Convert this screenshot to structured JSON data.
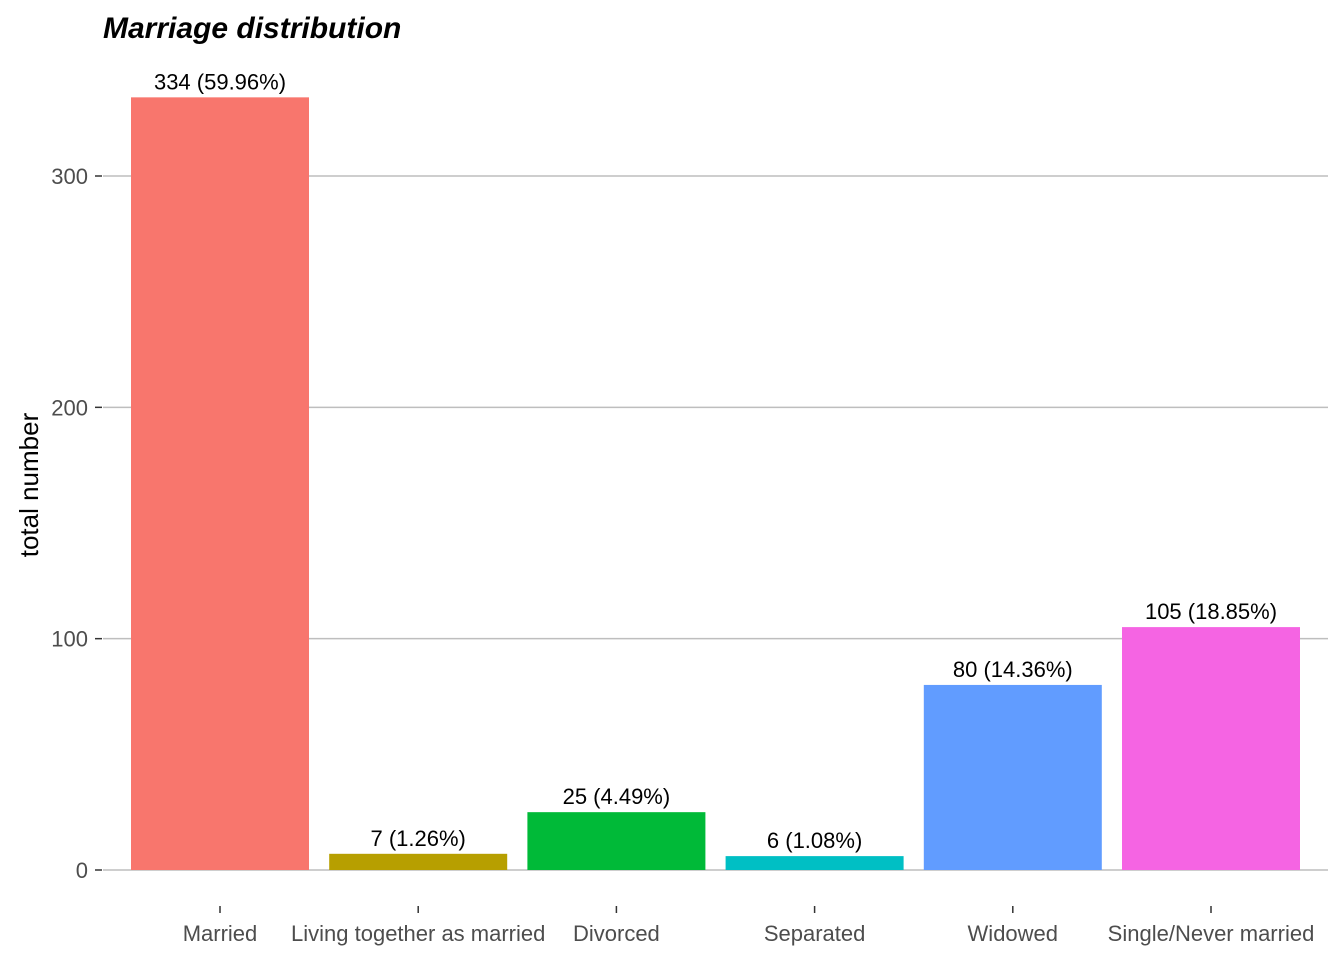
{
  "chart_data": {
    "type": "bar",
    "title": "Marriage distribution",
    "xlabel": "",
    "ylabel": "total number",
    "categories": [
      "Married",
      "Living together as married",
      "Divorced",
      "Separated",
      "Widowed",
      "Single/Never married"
    ],
    "values": [
      334,
      7,
      25,
      6,
      80,
      105
    ],
    "data_labels": [
      "334 (59.96%)",
      "7 (1.26%)",
      "25 (4.49%)",
      "6 (1.08%)",
      "80 (14.36%)",
      "105 (18.85%)"
    ],
    "colors": [
      "#F8766D",
      "#B79F00",
      "#00BA38",
      "#00BFC4",
      "#619CFF",
      "#F564E3"
    ],
    "yticks": [
      0,
      100,
      200,
      300
    ],
    "ylim": [
      0,
      345
    ],
    "grid": true,
    "legend": "none"
  }
}
